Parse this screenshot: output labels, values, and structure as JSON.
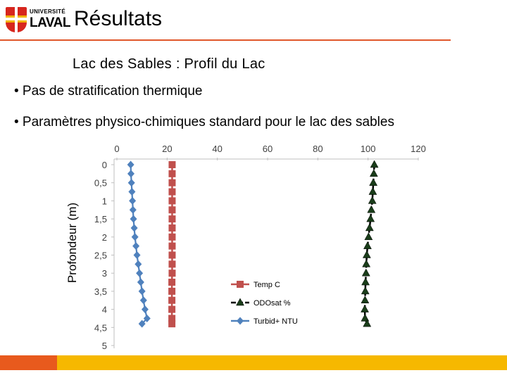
{
  "logo": {
    "line1": "UNIVERSITÉ",
    "line2": "LAVAL"
  },
  "header": {
    "title": "Résultats"
  },
  "subtitle": "Lac des Sables : Profil du Lac",
  "bullets": [
    "• Pas de stratification thermique",
    "• Paramètres physico-chimiques standard pour le lac des sables"
  ],
  "colors": {
    "temp": "#c0504d",
    "odo": "#000000",
    "turbid": "#4f81bd",
    "accent": "#e0572b"
  },
  "chart_data": {
    "type": "line",
    "ylabel": "Profondeur (m)",
    "x_ticks": [
      "0",
      "20",
      "40",
      "60",
      "80",
      "100",
      "120"
    ],
    "y_ticks": [
      "0",
      "0,5",
      "1",
      "1,5",
      "2",
      "2,5",
      "3",
      "3,5",
      "4",
      "4,5",
      "5"
    ],
    "xlim": [
      0,
      120
    ],
    "ylim": [
      0,
      5
    ],
    "y_inverted": true,
    "x_axis_position": "top",
    "legend_position": "right",
    "depths": [
      0,
      0.25,
      0.5,
      0.75,
      1,
      1.25,
      1.5,
      1.75,
      2,
      2.25,
      2.5,
      2.75,
      3,
      3.25,
      3.5,
      3.75,
      4,
      4.25,
      4.4
    ],
    "series": [
      {
        "name": "Temp  C",
        "marker": "square",
        "values": [
          22.0,
          22.0,
          22.0,
          22.0,
          22.0,
          22.0,
          22.0,
          22.0,
          22.0,
          22.0,
          22.0,
          22.0,
          22.0,
          21.9,
          21.9,
          21.9,
          21.9,
          21.9,
          21.9
        ]
      },
      {
        "name": "ODOsat  %",
        "marker": "triangle",
        "values": [
          102.5,
          102.3,
          102.1,
          101.9,
          101.7,
          101.3,
          101.0,
          100.6,
          100.2,
          99.8,
          99.5,
          99.3,
          99.2,
          99.0,
          98.9,
          98.8,
          98.7,
          98.8,
          99.6
        ]
      },
      {
        "name": "Turbid+ NTU",
        "marker": "diamond",
        "values": [
          5.5,
          5.6,
          5.8,
          6.0,
          6.2,
          6.4,
          6.6,
          6.9,
          7.2,
          7.6,
          8.0,
          8.5,
          9.0,
          9.5,
          10.0,
          10.6,
          11.2,
          12.0,
          10.0
        ]
      }
    ]
  }
}
